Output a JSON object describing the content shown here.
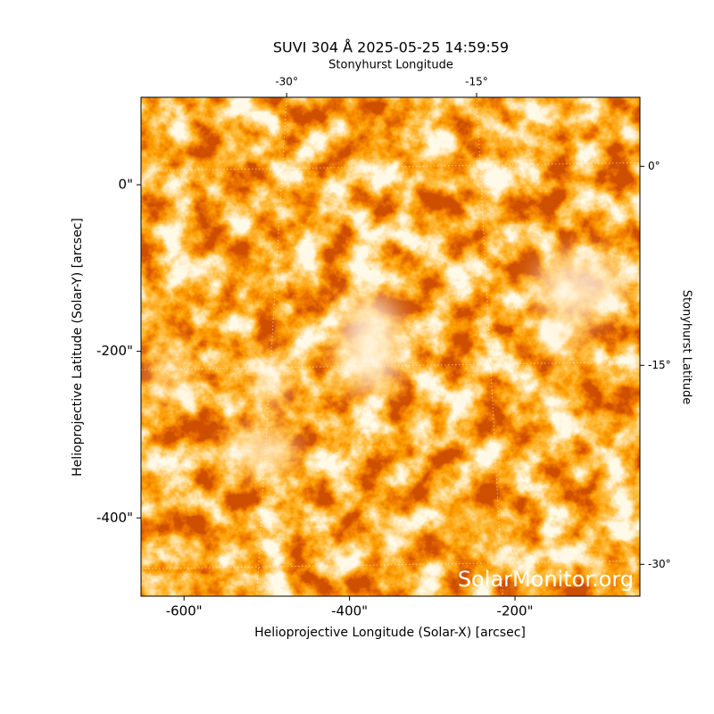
{
  "chart_data": {
    "type": "image",
    "title": "SUVI 304 Å 2025-05-25 14:59:59",
    "x_label": "Helioprojective Longitude (Solar-X) [arcsec]",
    "y_label": "Helioprojective Latitude (Solar-Y) [arcsec]",
    "xlim": [
      -652,
      -49
    ],
    "ylim": [
      -494,
      105
    ],
    "xticks": [
      {
        "value": -600,
        "label": "-600\""
      },
      {
        "value": -400,
        "label": "-400\""
      },
      {
        "value": -200,
        "label": "-200\""
      }
    ],
    "yticks": [
      {
        "value": 0,
        "label": "0\""
      },
      {
        "value": -200,
        "label": "-200\""
      },
      {
        "value": -400,
        "label": "-400\""
      }
    ],
    "top_label": "Stonyhurst Longitude",
    "top_lim": [
      -41.5,
      -2.1
    ],
    "top_ticks": [
      {
        "value": -30,
        "label": "-30°"
      },
      {
        "value": -15,
        "label": "-15°"
      }
    ],
    "right_label": "Stonyhurst Latitude",
    "right_lim": [
      5.2,
      -32.4
    ],
    "right_ticks": [
      {
        "value": 0,
        "label": "0°"
      },
      {
        "value": -15,
        "label": "-15°"
      },
      {
        "value": -30,
        "label": "-30°"
      }
    ],
    "watermark": "SolarMonitor.org"
  }
}
